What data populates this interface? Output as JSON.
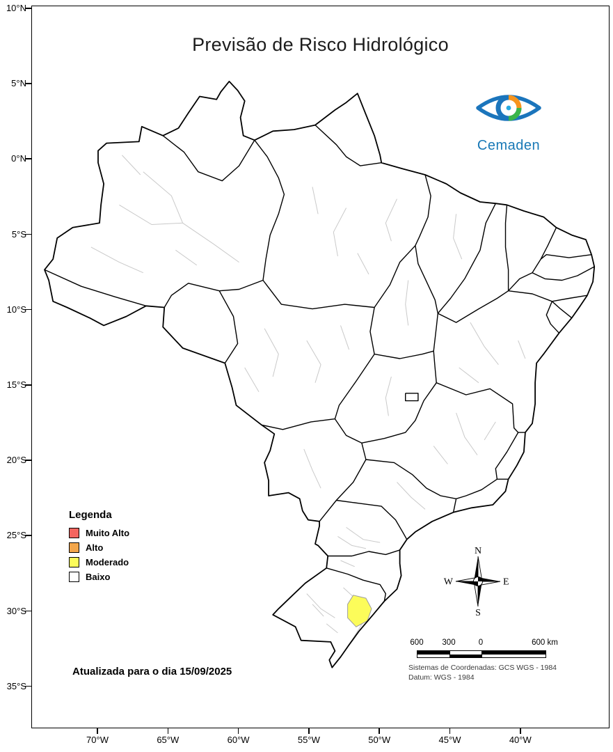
{
  "title": "Previsão de Risco Hidrológico",
  "logo": {
    "text": "Cemaden",
    "brand_color": "#1878b6"
  },
  "legend": {
    "title": "Legenda",
    "items": [
      {
        "label": "Muito Alto",
        "color": "#f4655f"
      },
      {
        "label": "Alto",
        "color": "#f3a64b"
      },
      {
        "label": "Moderado",
        "color": "#fcfc5a"
      },
      {
        "label": "Baixo",
        "color": "#ffffff"
      }
    ]
  },
  "update_note": "Atualizada para o dia 15/09/2025",
  "compass": {
    "north": "N",
    "south": "S",
    "east": "E",
    "west": "W"
  },
  "scale_bar": {
    "labels": [
      "600",
      "300",
      "0",
      "600 km"
    ]
  },
  "crs_note": {
    "line1": "Sistemas de Coordenadas: GCS WGS - 1984",
    "line2": "Datum: WGS - 1984"
  },
  "axes": {
    "y_ticks": [
      "10°N",
      "5°N",
      "0°N",
      "5°S",
      "10°S",
      "15°S",
      "20°S",
      "25°S",
      "30°S",
      "35°S"
    ],
    "x_ticks": [
      "70°W",
      "65°W",
      "60°W",
      "55°W",
      "50°W",
      "45°W",
      "40°W"
    ]
  },
  "map": {
    "country": "Brasil",
    "highlighted_risk_level": "Moderado",
    "highlight_color": "#fcfc5a",
    "state_border_color": "#000000",
    "municipal_border_color": "#c9c9c9"
  }
}
